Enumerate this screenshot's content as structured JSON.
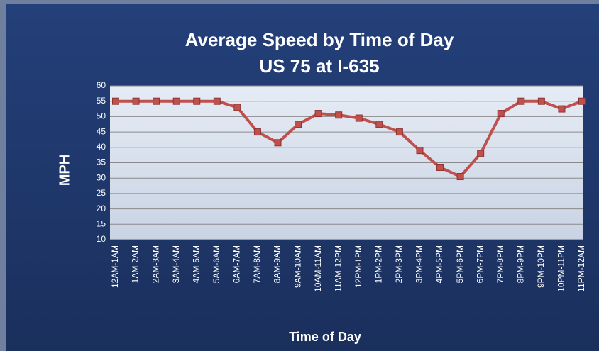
{
  "chart_data": {
    "type": "line",
    "title": "Average Speed by Time of Day",
    "subtitle": "US 75 at I-635",
    "y_label": "MPH",
    "x_label": "Time of Day",
    "categories": [
      "12AM-1AM",
      "1AM-2AM",
      "2AM-3AM",
      "3AM-4AM",
      "4AM-5AM",
      "5AM-6AM",
      "6AM-7AM",
      "7AM-8AM",
      "8AM-9AM",
      "9AM-10AM",
      "10AM-11AM",
      "11AM-12PM",
      "12PM-1PM",
      "1PM-2PM",
      "2PM-3PM",
      "3PM-4PM",
      "4PM-5PM",
      "5PM-6PM",
      "6PM-7PM",
      "7PM-8PM",
      "8PM-9PM",
      "9PM-10PM",
      "10PM-11PM",
      "11PM-12AM"
    ],
    "values": [
      55,
      55,
      55,
      55,
      55,
      55,
      53,
      45,
      41.5,
      47.5,
      51,
      50.5,
      49.5,
      47.5,
      45,
      39,
      33.5,
      30.5,
      38,
      51,
      55,
      55,
      52.5,
      55
    ],
    "color": "#c0504d",
    "ylim": [
      10,
      60
    ],
    "yticks": [
      10,
      15,
      20,
      25,
      30,
      35,
      40,
      45,
      50,
      55,
      60
    ],
    "grid": true
  }
}
